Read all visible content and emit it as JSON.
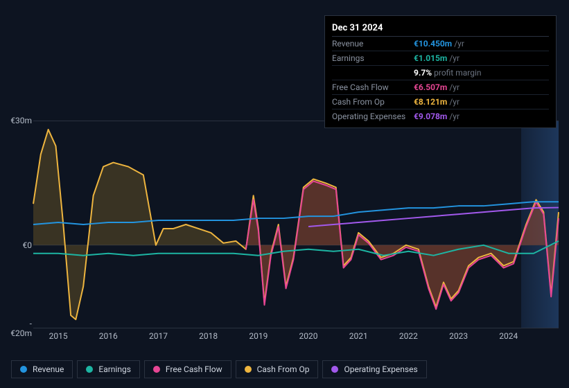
{
  "tooltip": {
    "date": "Dec 31 2024",
    "rows": [
      {
        "label": "Revenue",
        "value": "€10.450m",
        "suffix": "/yr",
        "color": "#2394df"
      },
      {
        "label": "Earnings",
        "value": "€1.015m",
        "suffix": "/yr",
        "color": "#1db5a3"
      },
      {
        "label": "",
        "value": "9.7%",
        "suffix": "profit margin",
        "color": "#ffffff"
      },
      {
        "label": "Free Cash Flow",
        "value": "€6.507m",
        "suffix": "/yr",
        "color": "#e74694"
      },
      {
        "label": "Cash From Op",
        "value": "€8.121m",
        "suffix": "/yr",
        "color": "#eeb53f"
      },
      {
        "label": "Operating Expenses",
        "value": "€9.078m",
        "suffix": "/yr",
        "color": "#a259ec"
      }
    ]
  },
  "chart": {
    "type": "line-area",
    "background_color": "#0d1421",
    "grid_color": "#2a3240",
    "ylim": [
      -20,
      30
    ],
    "y_ticks": [
      {
        "v": 30,
        "label": "€30m"
      },
      {
        "v": 0,
        "label": "€0"
      },
      {
        "v": -20,
        "label": "-€20m"
      }
    ],
    "x_range": [
      2014.5,
      2025.0
    ],
    "x_ticks": [
      2015,
      2016,
      2017,
      2018,
      2019,
      2020,
      2021,
      2022,
      2023,
      2024
    ],
    "highlight_x": 2024.8,
    "series": [
      {
        "name": "Cash From Op",
        "color": "#eeb53f",
        "fill": "rgba(140,110,40,0.35)",
        "width": 2,
        "data": [
          [
            2014.5,
            10
          ],
          [
            2014.65,
            22
          ],
          [
            2014.8,
            28
          ],
          [
            2014.95,
            24
          ],
          [
            2015.1,
            5
          ],
          [
            2015.25,
            -17
          ],
          [
            2015.35,
            -18
          ],
          [
            2015.5,
            -10
          ],
          [
            2015.7,
            12
          ],
          [
            2015.9,
            19
          ],
          [
            2016.1,
            20
          ],
          [
            2016.4,
            19
          ],
          [
            2016.7,
            17
          ],
          [
            2016.95,
            0
          ],
          [
            2017.1,
            4
          ],
          [
            2017.3,
            4
          ],
          [
            2017.55,
            5
          ],
          [
            2017.8,
            4
          ],
          [
            2018.05,
            3
          ],
          [
            2018.3,
            0.5
          ],
          [
            2018.55,
            1
          ],
          [
            2018.75,
            -1
          ],
          [
            2018.9,
            12
          ],
          [
            2019.0,
            4
          ],
          [
            2019.12,
            -14
          ],
          [
            2019.25,
            -2
          ],
          [
            2019.4,
            5
          ],
          [
            2019.55,
            -10
          ],
          [
            2019.7,
            -3
          ],
          [
            2019.9,
            14
          ],
          [
            2020.1,
            16
          ],
          [
            2020.35,
            15
          ],
          [
            2020.55,
            14
          ],
          [
            2020.7,
            -5
          ],
          [
            2020.85,
            -3
          ],
          [
            2021.0,
            3
          ],
          [
            2021.2,
            1
          ],
          [
            2021.45,
            -3
          ],
          [
            2021.7,
            -2
          ],
          [
            2021.95,
            0
          ],
          [
            2022.2,
            -1
          ],
          [
            2022.4,
            -10
          ],
          [
            2022.55,
            -15
          ],
          [
            2022.7,
            -9
          ],
          [
            2022.85,
            -13
          ],
          [
            2023.0,
            -11
          ],
          [
            2023.2,
            -5
          ],
          [
            2023.4,
            -3
          ],
          [
            2023.65,
            -2
          ],
          [
            2023.9,
            -5
          ],
          [
            2024.1,
            -4
          ],
          [
            2024.35,
            5
          ],
          [
            2024.55,
            11
          ],
          [
            2024.7,
            8
          ],
          [
            2024.85,
            -12
          ],
          [
            2025.0,
            8
          ]
        ]
      },
      {
        "name": "Free Cash Flow",
        "color": "#e74694",
        "fill": "rgba(160,50,60,0.30)",
        "width": 2,
        "data": [
          [
            2018.75,
            -1
          ],
          [
            2018.9,
            11
          ],
          [
            2019.0,
            3.5
          ],
          [
            2019.12,
            -14.5
          ],
          [
            2019.25,
            -2.5
          ],
          [
            2019.4,
            4.5
          ],
          [
            2019.55,
            -10.5
          ],
          [
            2019.7,
            -3.5
          ],
          [
            2019.9,
            13.5
          ],
          [
            2020.1,
            15.5
          ],
          [
            2020.35,
            14.5
          ],
          [
            2020.55,
            13.5
          ],
          [
            2020.7,
            -5.5
          ],
          [
            2020.85,
            -3.5
          ],
          [
            2021.0,
            2.5
          ],
          [
            2021.2,
            0.5
          ],
          [
            2021.45,
            -3.5
          ],
          [
            2021.7,
            -2.5
          ],
          [
            2021.95,
            -0.5
          ],
          [
            2022.2,
            -1.5
          ],
          [
            2022.4,
            -10.5
          ],
          [
            2022.55,
            -15.5
          ],
          [
            2022.7,
            -9.5
          ],
          [
            2022.85,
            -13.5
          ],
          [
            2023.0,
            -11.5
          ],
          [
            2023.2,
            -5.5
          ],
          [
            2023.4,
            -3.5
          ],
          [
            2023.65,
            -2.5
          ],
          [
            2023.9,
            -5.5
          ],
          [
            2024.1,
            -4.5
          ],
          [
            2024.35,
            4.5
          ],
          [
            2024.55,
            10.5
          ],
          [
            2024.7,
            7.5
          ],
          [
            2024.85,
            -12.5
          ],
          [
            2025.0,
            6.5
          ]
        ]
      },
      {
        "name": "Revenue",
        "color": "#2394df",
        "fill": null,
        "width": 2,
        "data": [
          [
            2014.5,
            5
          ],
          [
            2015.0,
            5.5
          ],
          [
            2015.5,
            5
          ],
          [
            2016.0,
            5.5
          ],
          [
            2016.5,
            5.5
          ],
          [
            2017.0,
            6
          ],
          [
            2017.5,
            6
          ],
          [
            2018.0,
            6
          ],
          [
            2018.5,
            6
          ],
          [
            2019.0,
            6.5
          ],
          [
            2019.5,
            6.5
          ],
          [
            2020.0,
            7
          ],
          [
            2020.5,
            7
          ],
          [
            2021.0,
            8
          ],
          [
            2021.5,
            8.5
          ],
          [
            2022.0,
            9
          ],
          [
            2022.5,
            9
          ],
          [
            2023.0,
            9.5
          ],
          [
            2023.5,
            9.5
          ],
          [
            2024.0,
            10
          ],
          [
            2024.5,
            10.5
          ],
          [
            2025.0,
            10.5
          ]
        ]
      },
      {
        "name": "Earnings",
        "color": "#1db5a3",
        "fill": null,
        "width": 2,
        "data": [
          [
            2014.5,
            -2
          ],
          [
            2015.0,
            -2
          ],
          [
            2015.5,
            -2.5
          ],
          [
            2016.0,
            -2
          ],
          [
            2016.5,
            -2.5
          ],
          [
            2017.0,
            -2
          ],
          [
            2017.5,
            -2
          ],
          [
            2018.0,
            -2
          ],
          [
            2018.5,
            -2
          ],
          [
            2019.0,
            -2.5
          ],
          [
            2019.5,
            -1.5
          ],
          [
            2020.0,
            -1
          ],
          [
            2020.5,
            -1.5
          ],
          [
            2021.0,
            -1
          ],
          [
            2021.5,
            -2.5
          ],
          [
            2022.0,
            -1.5
          ],
          [
            2022.5,
            -2.5
          ],
          [
            2023.0,
            -1
          ],
          [
            2023.5,
            0
          ],
          [
            2024.0,
            -2
          ],
          [
            2024.5,
            -2
          ],
          [
            2025.0,
            1
          ]
        ]
      },
      {
        "name": "Operating Expenses",
        "color": "#a259ec",
        "fill": null,
        "width": 2,
        "data": [
          [
            2020.0,
            4.5
          ],
          [
            2020.5,
            5
          ],
          [
            2021.0,
            5.5
          ],
          [
            2021.5,
            6
          ],
          [
            2022.0,
            6.5
          ],
          [
            2022.5,
            7
          ],
          [
            2023.0,
            7.5
          ],
          [
            2023.5,
            8
          ],
          [
            2024.0,
            8.5
          ],
          [
            2024.5,
            9
          ],
          [
            2025.0,
            9.1
          ]
        ]
      }
    ],
    "legend": [
      {
        "label": "Revenue",
        "color": "#2394df"
      },
      {
        "label": "Earnings",
        "color": "#1db5a3"
      },
      {
        "label": "Free Cash Flow",
        "color": "#e74694"
      },
      {
        "label": "Cash From Op",
        "color": "#eeb53f"
      },
      {
        "label": "Operating Expenses",
        "color": "#a259ec"
      }
    ]
  }
}
